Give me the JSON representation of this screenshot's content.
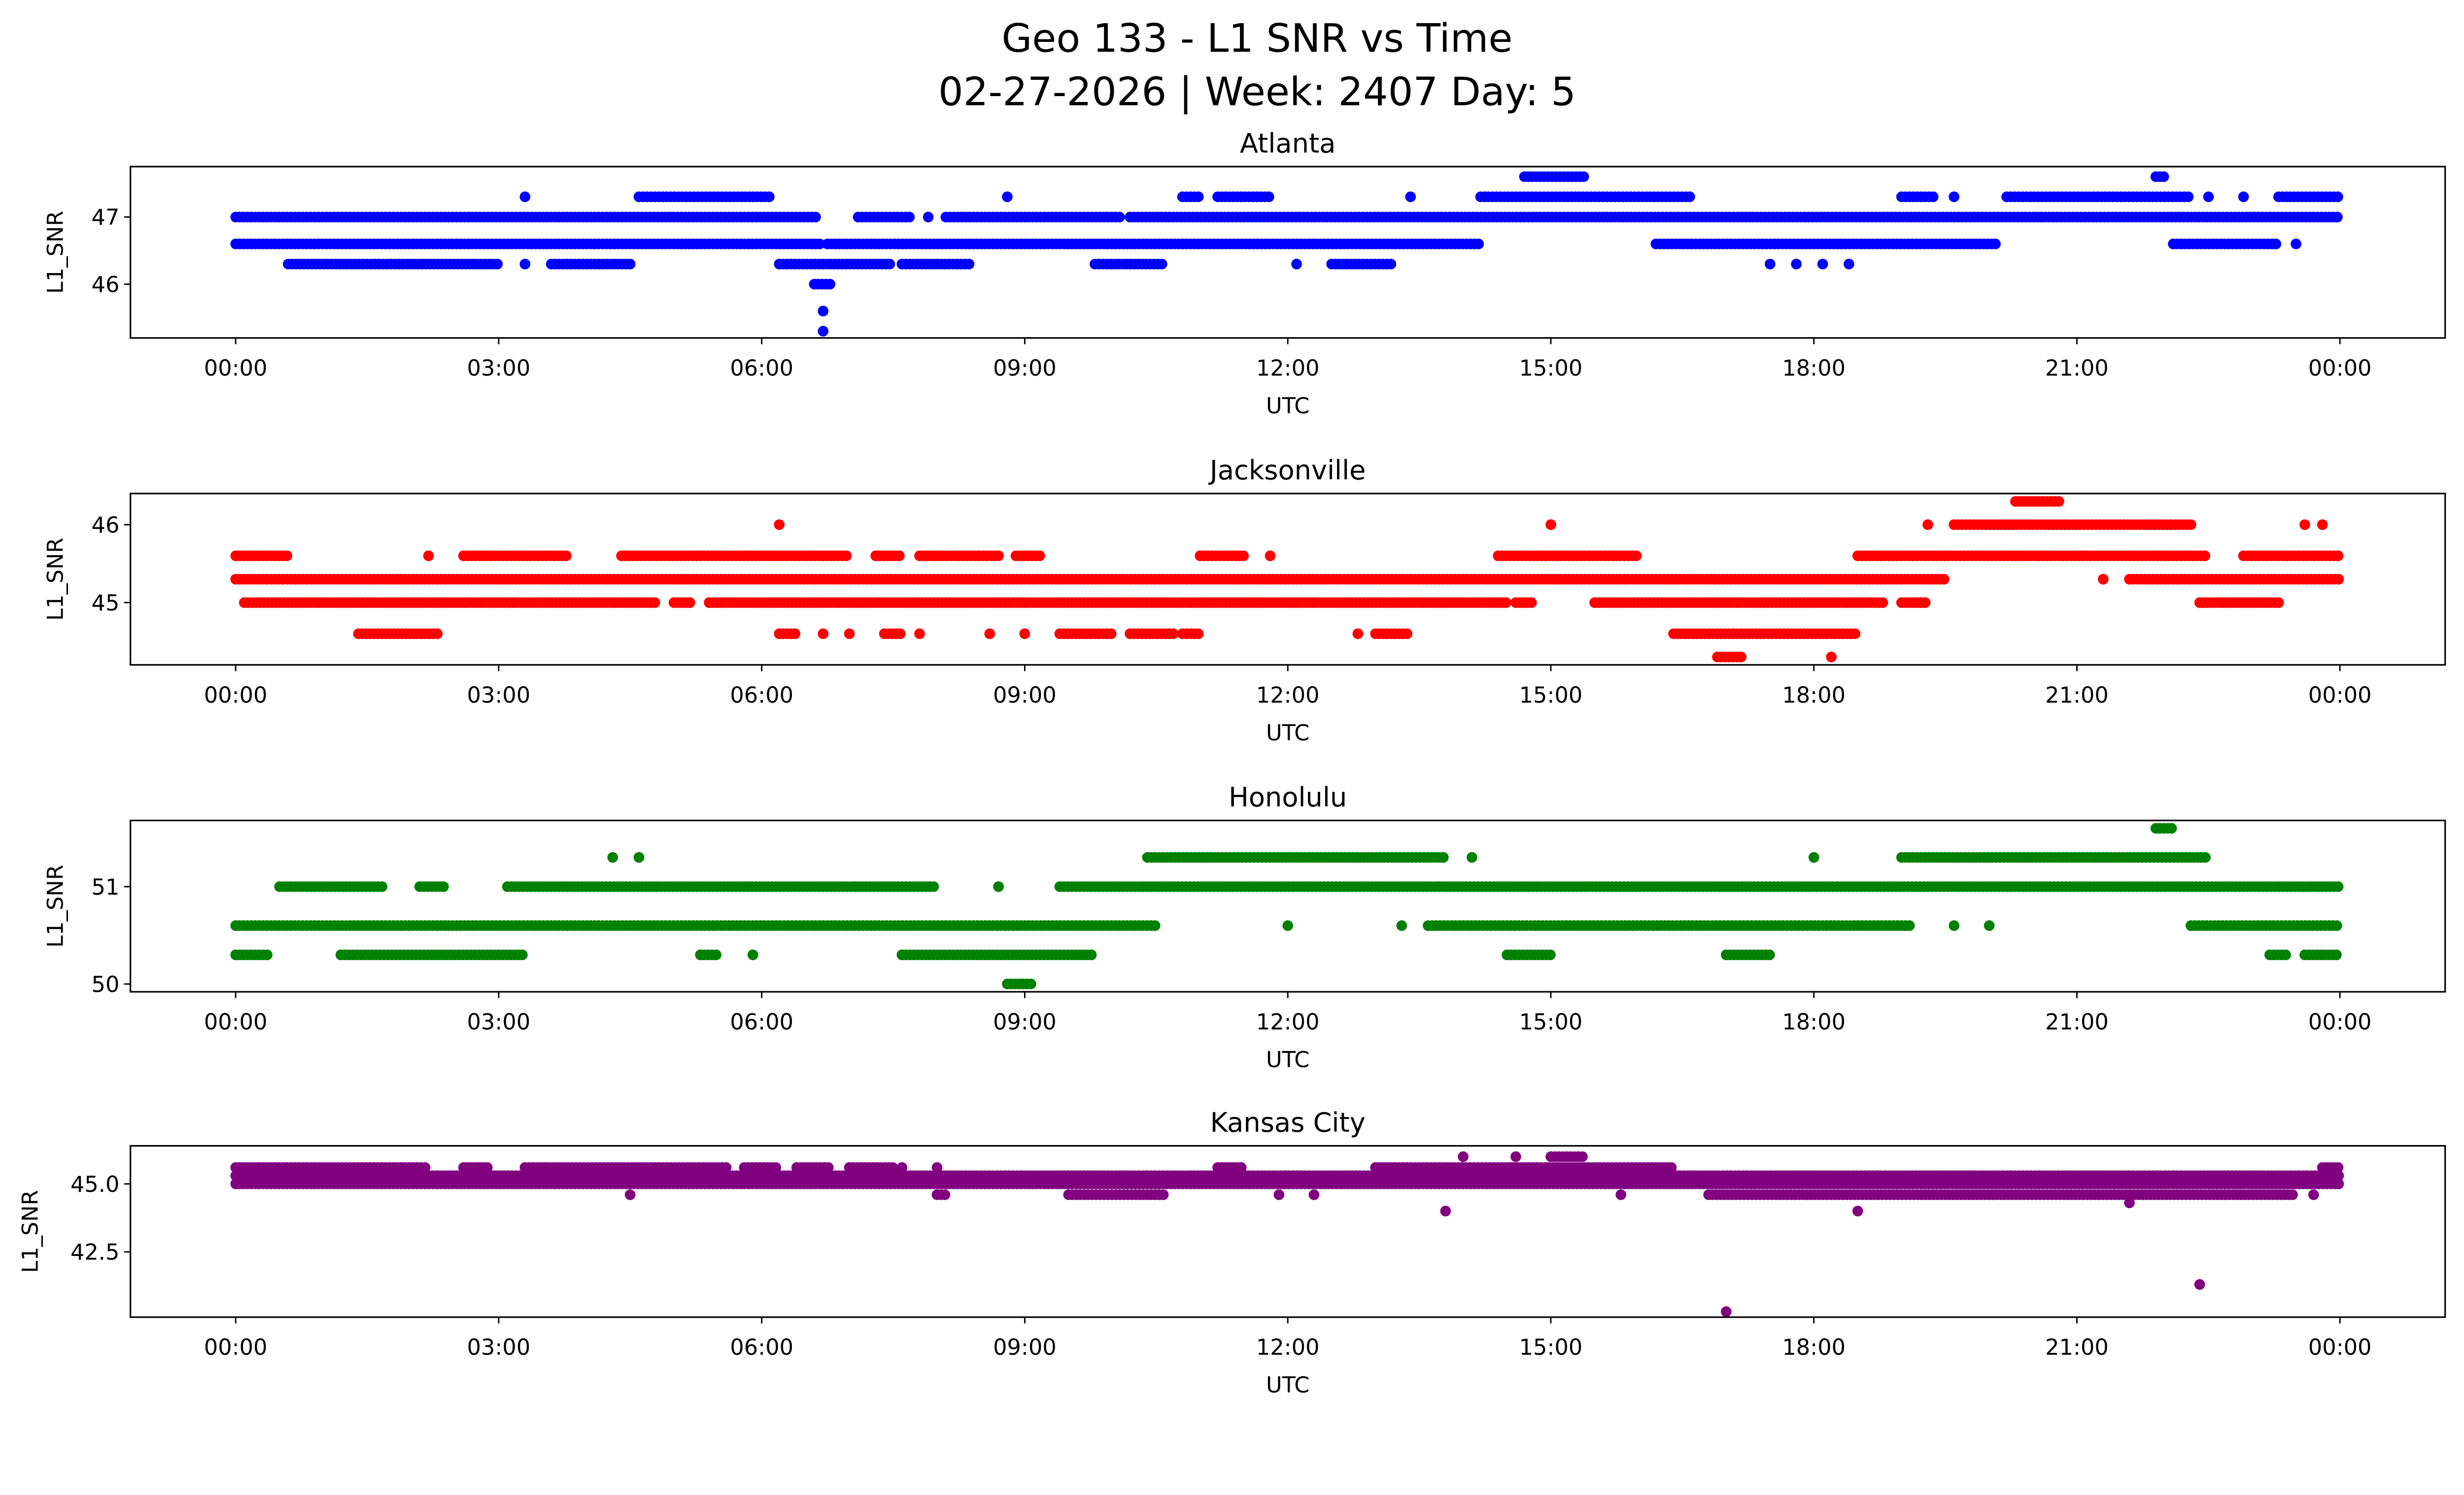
{
  "chart_data": {
    "type": "scatter",
    "title": "Geo 133 - L1 SNR vs Time",
    "subtitle": "02-27-2026 | Week: 2407 Day: 5",
    "x_tick_labels": [
      "00:00",
      "03:00",
      "06:00",
      "09:00",
      "12:00",
      "15:00",
      "18:00",
      "21:00",
      "00:00"
    ],
    "x_ticks_hours": [
      0,
      3,
      6,
      9,
      12,
      15,
      18,
      21,
      24
    ],
    "xlim_hours": [
      -1.2,
      25.2
    ],
    "run_note": "runs are [start_hour, end_hour, L1_SNR]; points are dense along each run",
    "panels": [
      {
        "name": "Atlanta",
        "color": "#0000ff",
        "xlabel": "UTC",
        "ylabel": "L1_SNR",
        "ylim": [
          45.2,
          47.75
        ],
        "yticks": [
          46,
          47
        ],
        "ytick_labels": [
          "46",
          "47"
        ],
        "runs": [
          [
            0,
            6.65,
            47.0
          ],
          [
            7.1,
            7.7,
            47.0
          ],
          [
            7.9,
            7.9,
            47.0
          ],
          [
            8.1,
            10.1,
            47.0
          ],
          [
            10.2,
            24,
            47.0
          ],
          [
            0,
            6.7,
            46.6
          ],
          [
            6.75,
            14.2,
            46.6
          ],
          [
            16.2,
            20.1,
            46.6
          ],
          [
            22.1,
            23.3,
            46.6
          ],
          [
            23.5,
            23.5,
            46.6
          ],
          [
            0.6,
            3.0,
            46.3
          ],
          [
            3.3,
            3.3,
            46.3
          ],
          [
            3.6,
            4.5,
            46.3
          ],
          [
            6.2,
            7.5,
            46.3
          ],
          [
            7.6,
            8.4,
            46.3
          ],
          [
            9.8,
            10.6,
            46.3
          ],
          [
            12.1,
            12.1,
            46.3
          ],
          [
            12.5,
            13.2,
            46.3
          ],
          [
            17.5,
            17.5,
            46.3
          ],
          [
            17.8,
            17.8,
            46.3
          ],
          [
            18.1,
            18.1,
            46.3
          ],
          [
            18.4,
            18.4,
            46.3
          ],
          [
            3.3,
            3.3,
            47.3
          ],
          [
            4.6,
            6.1,
            47.3
          ],
          [
            8.8,
            8.8,
            47.3
          ],
          [
            10.8,
            11.0,
            47.3
          ],
          [
            11.2,
            11.8,
            47.3
          ],
          [
            13.4,
            13.4,
            47.3
          ],
          [
            14.2,
            16.6,
            47.3
          ],
          [
            19.0,
            19.4,
            47.3
          ],
          [
            19.6,
            19.6,
            47.3
          ],
          [
            20.2,
            22.3,
            47.3
          ],
          [
            22.5,
            22.5,
            47.3
          ],
          [
            22.9,
            22.9,
            47.3
          ],
          [
            23.3,
            24,
            47.3
          ],
          [
            14.7,
            15.4,
            47.6
          ],
          [
            21.9,
            22.0,
            47.6
          ],
          [
            6.6,
            6.8,
            46.0
          ],
          [
            6.7,
            6.7,
            45.6
          ],
          [
            6.7,
            6.7,
            45.3
          ]
        ]
      },
      {
        "name": "Jacksonville",
        "color": "#ff0000",
        "xlabel": "UTC",
        "ylabel": "L1_SNR",
        "ylim": [
          44.2,
          46.4
        ],
        "yticks": [
          45,
          46
        ],
        "ytick_labels": [
          "45",
          "46"
        ],
        "runs": [
          [
            0,
            19.5,
            45.3
          ],
          [
            21.3,
            21.3,
            45.3
          ],
          [
            21.6,
            24,
            45.3
          ],
          [
            0,
            0.6,
            45.6
          ],
          [
            2.2,
            2.2,
            45.6
          ],
          [
            2.6,
            3.8,
            45.6
          ],
          [
            4.4,
            7.0,
            45.6
          ],
          [
            7.3,
            7.6,
            45.6
          ],
          [
            7.8,
            8.7,
            45.6
          ],
          [
            8.9,
            9.2,
            45.6
          ],
          [
            11.0,
            11.5,
            45.6
          ],
          [
            11.8,
            11.8,
            45.6
          ],
          [
            14.4,
            16.0,
            45.6
          ],
          [
            18.5,
            22.5,
            45.6
          ],
          [
            22.9,
            24,
            45.6
          ],
          [
            0.1,
            4.8,
            45.0
          ],
          [
            5.0,
            5.2,
            45.0
          ],
          [
            5.4,
            14.5,
            45.0
          ],
          [
            14.6,
            14.8,
            45.0
          ],
          [
            15.5,
            18.8,
            45.0
          ],
          [
            19.0,
            19.3,
            45.0
          ],
          [
            22.4,
            23.3,
            45.0
          ],
          [
            1.4,
            2.3,
            44.6
          ],
          [
            6.2,
            6.4,
            44.6
          ],
          [
            6.7,
            6.7,
            44.6
          ],
          [
            7.0,
            7.0,
            44.6
          ],
          [
            7.4,
            7.6,
            44.6
          ],
          [
            7.8,
            7.8,
            44.6
          ],
          [
            8.6,
            8.6,
            44.6
          ],
          [
            9.0,
            9.0,
            44.6
          ],
          [
            9.4,
            10.0,
            44.6
          ],
          [
            10.2,
            10.7,
            44.6
          ],
          [
            10.8,
            11.0,
            44.6
          ],
          [
            12.8,
            12.8,
            44.6
          ],
          [
            13.0,
            13.4,
            44.6
          ],
          [
            16.4,
            18.5,
            44.6
          ],
          [
            16.9,
            17.2,
            44.3
          ],
          [
            18.2,
            18.2,
            44.3
          ],
          [
            6.2,
            6.2,
            46.0
          ],
          [
            15.0,
            15.0,
            46.0
          ],
          [
            19.3,
            19.3,
            46.0
          ],
          [
            19.6,
            22.3,
            46.0
          ],
          [
            23.6,
            23.6,
            46.0
          ],
          [
            23.8,
            23.8,
            46.0
          ],
          [
            20.3,
            20.8,
            46.3
          ]
        ]
      },
      {
        "name": "Honolulu",
        "color": "#008000",
        "xlabel": "UTC",
        "ylabel": "L1_SNR",
        "ylim": [
          49.92,
          51.68
        ],
        "yticks": [
          50,
          51
        ],
        "ytick_labels": [
          "50",
          "51"
        ],
        "runs": [
          [
            0,
            10.5,
            50.6
          ],
          [
            12.0,
            12.0,
            50.6
          ],
          [
            13.3,
            13.3,
            50.6
          ],
          [
            13.6,
            19.1,
            50.6
          ],
          [
            19.6,
            19.6,
            50.6
          ],
          [
            20.0,
            20.0,
            50.6
          ],
          [
            22.3,
            24,
            50.6
          ],
          [
            0,
            0.4,
            50.3
          ],
          [
            1.2,
            3.3,
            50.3
          ],
          [
            5.3,
            5.5,
            50.3
          ],
          [
            5.9,
            5.9,
            50.3
          ],
          [
            7.6,
            9.8,
            50.3
          ],
          [
            14.5,
            15.0,
            50.3
          ],
          [
            17.0,
            17.5,
            50.3
          ],
          [
            23.2,
            23.4,
            50.3
          ],
          [
            23.6,
            24,
            50.3
          ],
          [
            0.5,
            1.7,
            51.0
          ],
          [
            2.1,
            2.4,
            51.0
          ],
          [
            3.1,
            8.0,
            51.0
          ],
          [
            8.7,
            8.7,
            51.0
          ],
          [
            9.4,
            24,
            51.0
          ],
          [
            4.3,
            4.3,
            51.3
          ],
          [
            4.6,
            4.6,
            51.3
          ],
          [
            10.4,
            13.8,
            51.3
          ],
          [
            14.1,
            14.1,
            51.3
          ],
          [
            18.0,
            18.0,
            51.3
          ],
          [
            19.0,
            22.5,
            51.3
          ],
          [
            21.9,
            22.1,
            51.6
          ],
          [
            8.8,
            9.1,
            50.0
          ]
        ]
      },
      {
        "name": "Kansas City",
        "color": "#800080",
        "xlabel": "UTC",
        "ylabel": "L1_SNR",
        "ylim": [
          40.1,
          46.4
        ],
        "yticks": [
          42.5,
          45.0
        ],
        "ytick_labels": [
          "42.5",
          "45.0"
        ],
        "runs": [
          [
            0,
            24,
            45.3
          ],
          [
            0,
            24,
            45.0
          ],
          [
            0,
            2.2,
            45.6
          ],
          [
            2.6,
            2.9,
            45.6
          ],
          [
            3.3,
            5.6,
            45.6
          ],
          [
            5.8,
            6.2,
            45.6
          ],
          [
            6.4,
            6.8,
            45.6
          ],
          [
            7.0,
            7.5,
            45.6
          ],
          [
            7.6,
            7.6,
            45.6
          ],
          [
            8.0,
            8.0,
            45.6
          ],
          [
            11.2,
            11.5,
            45.6
          ],
          [
            13.0,
            16.4,
            45.6
          ],
          [
            23.8,
            24,
            45.6
          ],
          [
            4.5,
            4.5,
            44.6
          ],
          [
            8.0,
            8.1,
            44.6
          ],
          [
            9.5,
            10.6,
            44.6
          ],
          [
            11.9,
            11.9,
            44.6
          ],
          [
            12.3,
            12.3,
            44.6
          ],
          [
            15.8,
            15.8,
            44.6
          ],
          [
            16.8,
            23.5,
            44.6
          ],
          [
            23.7,
            23.7,
            44.6
          ],
          [
            14.0,
            14.0,
            46.0
          ],
          [
            14.6,
            14.6,
            46.0
          ],
          [
            15.0,
            15.4,
            46.0
          ],
          [
            13.8,
            13.8,
            44.0
          ],
          [
            18.5,
            18.5,
            44.0
          ],
          [
            21.6,
            21.6,
            44.3
          ],
          [
            22.4,
            22.4,
            41.3
          ],
          [
            17.0,
            17.0,
            40.3
          ]
        ]
      }
    ]
  }
}
